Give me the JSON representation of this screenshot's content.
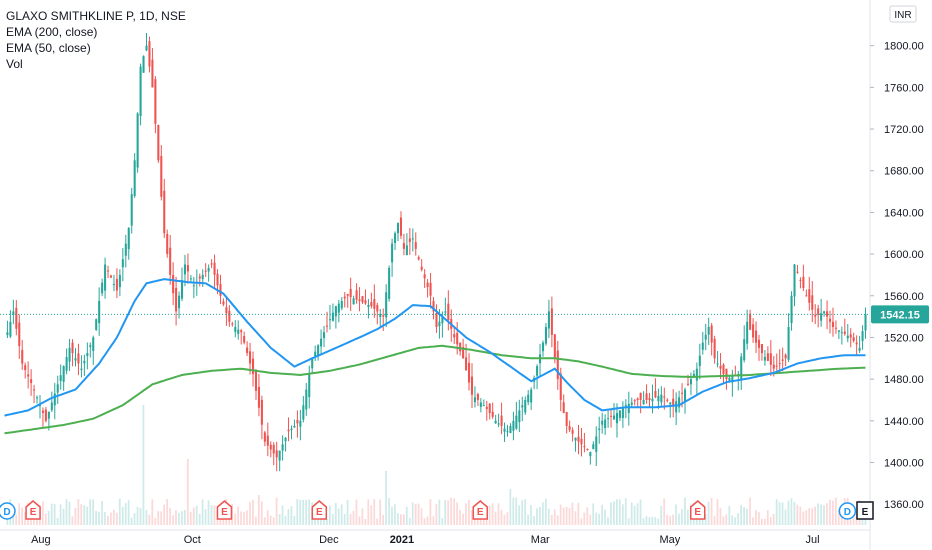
{
  "legend": {
    "title": "GLAXO SMITHKLINE P, 1D, NSE",
    "ema200": "EMA (200, close)",
    "ema50": "EMA (50, close)",
    "vol": "Vol"
  },
  "currency_label": "INR",
  "last_price_label": "1542.15",
  "colors": {
    "up": "#26a69a",
    "down": "#ef5350",
    "ema50": "#2196f3",
    "ema200": "#4caf50",
    "last_price": "#26a69a",
    "dividend": "#2196f3",
    "earnings": "#ef5350"
  },
  "chart_data": {
    "type": "candlestick",
    "ylim": [
      1340,
      1840
    ],
    "y_ticks": [
      1360,
      1400,
      1440,
      1480,
      1520,
      1560,
      1600,
      1640,
      1680,
      1720,
      1760,
      1800
    ],
    "y_tick_labels": [
      "1360.00",
      "1400.00",
      "1440.00",
      "1480.00",
      "1520.00",
      "1560.00",
      "1600.00",
      "1640.00",
      "1680.00",
      "1720.00",
      "1760.00",
      "1800.00"
    ],
    "x_labels": [
      {
        "label": "Aug",
        "bold": false,
        "t": 0.047
      },
      {
        "label": "Oct",
        "bold": false,
        "t": 0.221
      },
      {
        "label": "Dec",
        "bold": false,
        "t": 0.378
      },
      {
        "label": "2021",
        "bold": true,
        "t": 0.462
      },
      {
        "label": "Mar",
        "bold": false,
        "t": 0.621
      },
      {
        "label": "May",
        "bold": false,
        "t": 0.77
      },
      {
        "label": "Jul",
        "bold": false,
        "t": 0.934
      }
    ],
    "last_price": 1542.15,
    "close_anchors": [
      [
        0,
        1515
      ],
      [
        3,
        1545
      ],
      [
        6,
        1495
      ],
      [
        10,
        1470
      ],
      [
        14,
        1440
      ],
      [
        18,
        1475
      ],
      [
        22,
        1510
      ],
      [
        26,
        1490
      ],
      [
        30,
        1520
      ],
      [
        34,
        1590
      ],
      [
        38,
        1565
      ],
      [
        42,
        1625
      ],
      [
        44,
        1690
      ],
      [
        46,
        1780
      ],
      [
        48,
        1800
      ],
      [
        50,
        1760
      ],
      [
        52,
        1690
      ],
      [
        54,
        1620
      ],
      [
        56,
        1580
      ],
      [
        58,
        1545
      ],
      [
        61,
        1590
      ],
      [
        64,
        1570
      ],
      [
        67,
        1580
      ],
      [
        70,
        1590
      ],
      [
        73,
        1560
      ],
      [
        76,
        1535
      ],
      [
        80,
        1525
      ],
      [
        84,
        1485
      ],
      [
        88,
        1420
      ],
      [
        92,
        1405
      ],
      [
        96,
        1430
      ],
      [
        100,
        1440
      ],
      [
        104,
        1500
      ],
      [
        108,
        1525
      ],
      [
        112,
        1550
      ],
      [
        116,
        1560
      ],
      [
        120,
        1555
      ],
      [
        124,
        1550
      ],
      [
        128,
        1540
      ],
      [
        131,
        1610
      ],
      [
        133,
        1630
      ],
      [
        135,
        1605
      ],
      [
        138,
        1615
      ],
      [
        141,
        1585
      ],
      [
        144,
        1560
      ],
      [
        146,
        1530
      ],
      [
        149,
        1545
      ],
      [
        152,
        1520
      ],
      [
        155,
        1500
      ],
      [
        158,
        1465
      ],
      [
        162,
        1455
      ],
      [
        166,
        1440
      ],
      [
        170,
        1430
      ],
      [
        174,
        1450
      ],
      [
        178,
        1470
      ],
      [
        182,
        1515
      ],
      [
        184,
        1545
      ],
      [
        186,
        1500
      ],
      [
        188,
        1460
      ],
      [
        190,
        1435
      ],
      [
        194,
        1420
      ],
      [
        198,
        1410
      ],
      [
        202,
        1440
      ],
      [
        206,
        1445
      ],
      [
        210,
        1455
      ],
      [
        214,
        1460
      ],
      [
        218,
        1460
      ],
      [
        222,
        1465
      ],
      [
        226,
        1455
      ],
      [
        230,
        1470
      ],
      [
        234,
        1490
      ],
      [
        236,
        1515
      ],
      [
        238,
        1530
      ],
      [
        240,
        1500
      ],
      [
        244,
        1480
      ],
      [
        248,
        1485
      ],
      [
        251,
        1535
      ],
      [
        253,
        1520
      ],
      [
        256,
        1505
      ],
      [
        260,
        1490
      ],
      [
        264,
        1500
      ],
      [
        267,
        1590
      ],
      [
        269,
        1575
      ],
      [
        271,
        1560
      ],
      [
        274,
        1540
      ],
      [
        277,
        1545
      ],
      [
        280,
        1530
      ],
      [
        283,
        1525
      ],
      [
        286,
        1520
      ],
      [
        289,
        1510
      ],
      [
        291,
        1542.15
      ]
    ],
    "ema50_anchors": [
      [
        0,
        1445
      ],
      [
        8,
        1450
      ],
      [
        16,
        1462
      ],
      [
        24,
        1470
      ],
      [
        32,
        1495
      ],
      [
        38,
        1520
      ],
      [
        44,
        1555
      ],
      [
        48,
        1572
      ],
      [
        54,
        1576
      ],
      [
        62,
        1573
      ],
      [
        68,
        1572
      ],
      [
        74,
        1562
      ],
      [
        82,
        1535
      ],
      [
        90,
        1510
      ],
      [
        98,
        1492
      ],
      [
        104,
        1500
      ],
      [
        112,
        1510
      ],
      [
        120,
        1520
      ],
      [
        126,
        1528
      ],
      [
        132,
        1538
      ],
      [
        138,
        1551
      ],
      [
        144,
        1550
      ],
      [
        150,
        1535
      ],
      [
        156,
        1520
      ],
      [
        164,
        1506
      ],
      [
        172,
        1490
      ],
      [
        178,
        1478
      ],
      [
        182,
        1484
      ],
      [
        186,
        1490
      ],
      [
        190,
        1477
      ],
      [
        196,
        1460
      ],
      [
        202,
        1450
      ],
      [
        210,
        1453
      ],
      [
        220,
        1453
      ],
      [
        228,
        1455
      ],
      [
        236,
        1468
      ],
      [
        244,
        1477
      ],
      [
        252,
        1481
      ],
      [
        260,
        1486
      ],
      [
        268,
        1495
      ],
      [
        276,
        1500
      ],
      [
        284,
        1503
      ],
      [
        291,
        1503
      ]
    ],
    "ema200_anchors": [
      [
        0,
        1428
      ],
      [
        10,
        1432
      ],
      [
        20,
        1436
      ],
      [
        30,
        1442
      ],
      [
        40,
        1455
      ],
      [
        50,
        1475
      ],
      [
        60,
        1484
      ],
      [
        70,
        1488
      ],
      [
        80,
        1490
      ],
      [
        90,
        1486
      ],
      [
        100,
        1484
      ],
      [
        110,
        1488
      ],
      [
        120,
        1494
      ],
      [
        130,
        1502
      ],
      [
        140,
        1510
      ],
      [
        148,
        1512
      ],
      [
        158,
        1508
      ],
      [
        168,
        1503
      ],
      [
        178,
        1500
      ],
      [
        186,
        1500
      ],
      [
        194,
        1497
      ],
      [
        202,
        1492
      ],
      [
        212,
        1485
      ],
      [
        222,
        1483
      ],
      [
        232,
        1482
      ],
      [
        242,
        1483
      ],
      [
        252,
        1484
      ],
      [
        262,
        1486
      ],
      [
        272,
        1488
      ],
      [
        282,
        1490
      ],
      [
        291,
        1491
      ]
    ],
    "volume_spikes": [
      {
        "i": 47,
        "v": 1.0
      },
      {
        "i": 62,
        "v": 0.55
      },
      {
        "i": 86,
        "v": 0.25
      },
      {
        "i": 129,
        "v": 0.45
      },
      {
        "i": 171,
        "v": 0.3
      }
    ],
    "events": [
      {
        "type": "dividend",
        "label": "D",
        "t": 0.008
      },
      {
        "type": "earnings",
        "label": "E",
        "t": 0.038
      },
      {
        "type": "earnings",
        "label": "E",
        "t": 0.258
      },
      {
        "type": "earnings",
        "label": "E",
        "t": 0.367
      },
      {
        "type": "earnings",
        "label": "E",
        "t": 0.552
      },
      {
        "type": "earnings",
        "label": "E",
        "t": 0.802
      },
      {
        "type": "dividend",
        "label": "D",
        "t": 0.974
      }
    ],
    "corner_event": {
      "label": "E"
    }
  }
}
